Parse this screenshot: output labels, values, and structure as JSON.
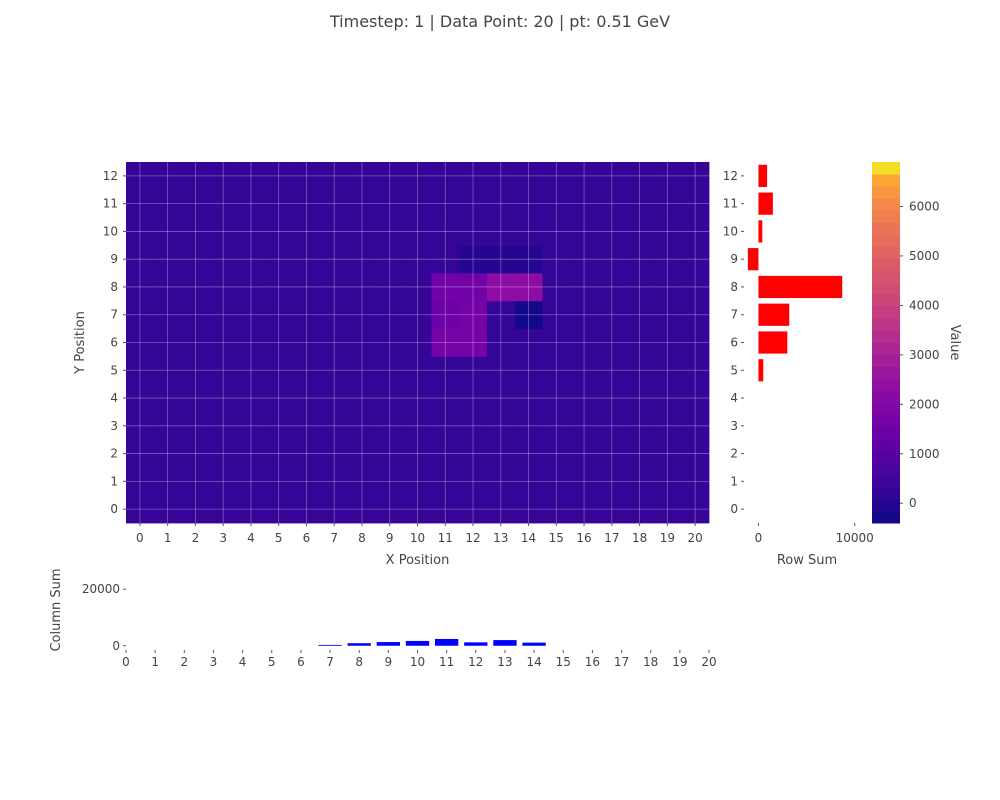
{
  "title": "Timestep: 1 | Data Point: 20 | pt: 0.51 GeV",
  "chart_data": [
    {
      "type": "heatmap",
      "xlabel": "X Position",
      "ylabel": "Y Position",
      "x": [
        0,
        1,
        2,
        3,
        4,
        5,
        6,
        7,
        8,
        9,
        10,
        11,
        12,
        13,
        14,
        15,
        16,
        17,
        18,
        19,
        20
      ],
      "y": [
        0,
        1,
        2,
        3,
        4,
        5,
        6,
        7,
        8,
        9,
        10,
        11,
        12
      ],
      "background_value": 300,
      "cells": [
        {
          "x": 11,
          "y": 6,
          "value": 1700
        },
        {
          "x": 12,
          "y": 6,
          "value": 1700
        },
        {
          "x": 11,
          "y": 7,
          "value": 1500
        },
        {
          "x": 12,
          "y": 7,
          "value": 1700
        },
        {
          "x": 11,
          "y": 8,
          "value": 1600
        },
        {
          "x": 12,
          "y": 8,
          "value": 1600
        },
        {
          "x": 13,
          "y": 8,
          "value": 2300
        },
        {
          "x": 14,
          "y": 8,
          "value": 2300
        },
        {
          "x": 12,
          "y": 9,
          "value": 0
        },
        {
          "x": 13,
          "y": 9,
          "value": 0
        },
        {
          "x": 14,
          "y": 9,
          "value": 0
        },
        {
          "x": 14,
          "y": 7,
          "value": -300
        }
      ],
      "colorbar": {
        "label": "Value",
        "range": [
          -400,
          6900
        ],
        "ticks": [
          0,
          1000,
          2000,
          3000,
          4000,
          5000,
          6000
        ],
        "tick_labels": [
          "0",
          "1000",
          "2000",
          "3000",
          "4000",
          "5000",
          "6000"
        ]
      },
      "grid": true
    },
    {
      "type": "bar",
      "orientation": "horizontal",
      "xlabel": "Row Sum",
      "categories": [
        0,
        1,
        2,
        3,
        4,
        5,
        6,
        7,
        8,
        9,
        10,
        11,
        12
      ],
      "values": [
        0,
        0,
        0,
        0,
        0,
        500,
        3000,
        3200,
        8700,
        -1100,
        400,
        1500,
        900
      ],
      "xlim": [
        -1500,
        12000
      ],
      "xticks": [
        "0",
        "10000"
      ],
      "xtick_values": [
        0,
        10000
      ],
      "color": "#ff0000"
    },
    {
      "type": "bar",
      "ylabel": "Column Sum",
      "categories": [
        0,
        1,
        2,
        3,
        4,
        5,
        6,
        7,
        8,
        9,
        10,
        11,
        12,
        13,
        14,
        15,
        16,
        17,
        18,
        19,
        20
      ],
      "values": [
        0,
        0,
        0,
        0,
        0,
        0,
        0,
        300,
        900,
        1300,
        1700,
        2400,
        1200,
        2000,
        1100,
        0,
        0,
        0,
        0,
        0,
        0
      ],
      "ylim": [
        -1500,
        25000
      ],
      "yticks": [
        "0",
        "20000"
      ],
      "ytick_values": [
        0,
        20000
      ],
      "color": "#0000ff"
    }
  ]
}
